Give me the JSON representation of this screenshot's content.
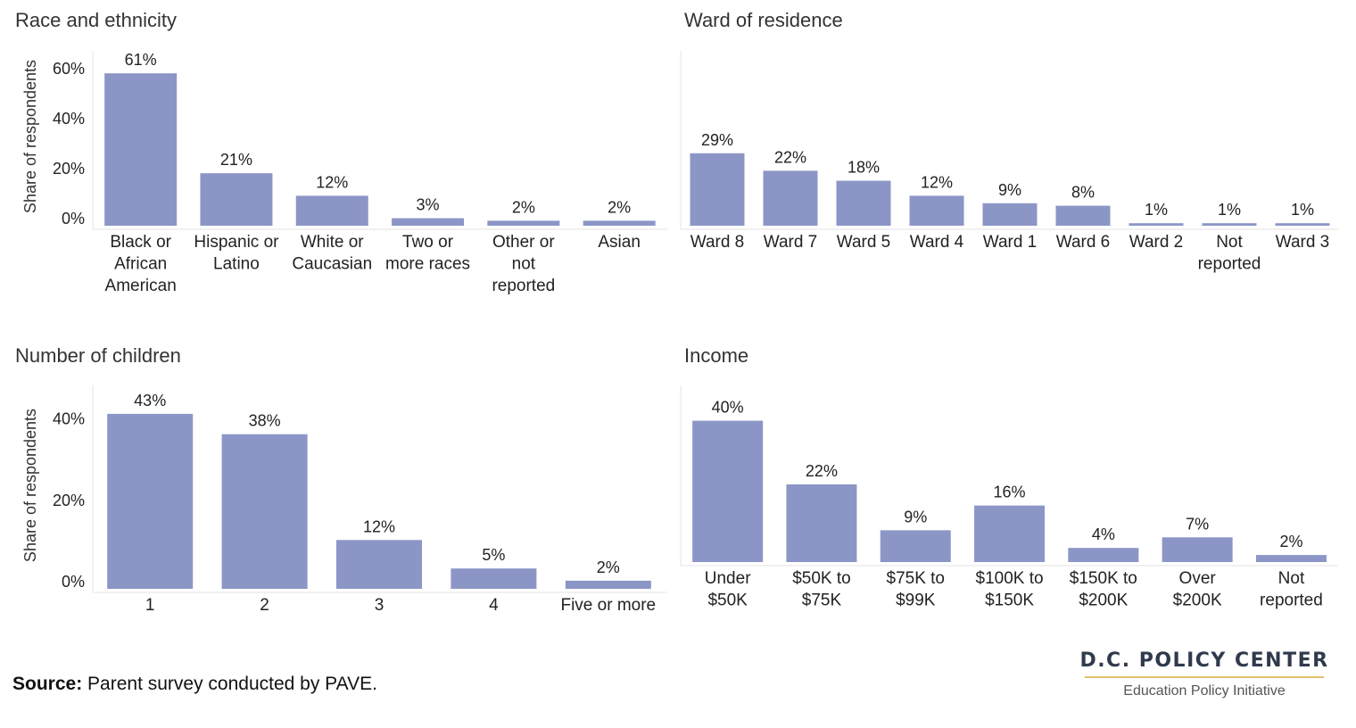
{
  "chart_data": [
    {
      "type": "bar",
      "title": "Race and ethnicity",
      "ylabel": "Share of respondents",
      "categories": [
        [
          "Black or",
          "African",
          "American"
        ],
        [
          "Hispanic or",
          "Latino"
        ],
        [
          "White or",
          "Caucasian"
        ],
        [
          "Two or",
          "more races"
        ],
        [
          "Other or",
          "not",
          "reported"
        ],
        [
          "Asian"
        ]
      ],
      "values": [
        61,
        21,
        12,
        3,
        2,
        2
      ],
      "data_labels": [
        "61%",
        "21%",
        "12%",
        "3%",
        "2%",
        "2%"
      ],
      "yticks": [
        0,
        20,
        40,
        60
      ],
      "ytick_labels": [
        "0%",
        "20%",
        "40%",
        "60%"
      ],
      "ylim": [
        0,
        70
      ]
    },
    {
      "type": "bar",
      "title": "Ward of residence",
      "ylabel": "",
      "categories": [
        [
          "Ward 8"
        ],
        [
          "Ward 7"
        ],
        [
          "Ward 5"
        ],
        [
          "Ward 4"
        ],
        [
          "Ward 1"
        ],
        [
          "Ward 6"
        ],
        [
          "Ward 2"
        ],
        [
          "Not",
          "reported"
        ],
        [
          "Ward 3"
        ]
      ],
      "values": [
        29,
        22,
        18,
        12,
        9,
        8,
        1,
        1,
        1
      ],
      "data_labels": [
        "29%",
        "22%",
        "18%",
        "12%",
        "9%",
        "8%",
        "1%",
        "1%",
        "1%"
      ],
      "yticks": [],
      "ytick_labels": [],
      "ylim": [
        0,
        70
      ]
    },
    {
      "type": "bar",
      "title": "Number of children",
      "ylabel": "Share of respondents",
      "categories": [
        [
          "1"
        ],
        [
          "2"
        ],
        [
          "3"
        ],
        [
          "4"
        ],
        [
          "Five or more"
        ]
      ],
      "values": [
        43,
        38,
        12,
        5,
        2
      ],
      "data_labels": [
        "43%",
        "38%",
        "12%",
        "5%",
        "2%"
      ],
      "yticks": [
        0,
        20,
        40
      ],
      "ytick_labels": [
        "0%",
        "20%",
        "40%"
      ],
      "ylim": [
        0,
        50
      ]
    },
    {
      "type": "bar",
      "title": "Income",
      "ylabel": "",
      "categories": [
        [
          "Under",
          "$50K"
        ],
        [
          "$50K to",
          "$75K"
        ],
        [
          "$75K to",
          "$99K"
        ],
        [
          "$100K to",
          "$150K"
        ],
        [
          "$150K to",
          "$200K"
        ],
        [
          "Over",
          "$200K"
        ],
        [
          "Not",
          "reported"
        ]
      ],
      "values": [
        40,
        22,
        9,
        16,
        4,
        7,
        2
      ],
      "data_labels": [
        "40%",
        "22%",
        "9%",
        "16%",
        "4%",
        "7%",
        "2%"
      ],
      "yticks": [],
      "ytick_labels": [],
      "ylim": [
        0,
        50
      ]
    }
  ],
  "colors": {
    "bar": "#8c96c6",
    "text": "#222222",
    "axis": "#e3e3e3",
    "logo_rule": "#e2c26a",
    "logo_text": "#2f3a4c"
  },
  "footer": {
    "source_label": "Source:",
    "source_text": "Parent survey conducted by PAVE.",
    "logo_title": "D.C. POLICY CENTER",
    "logo_subtitle": "Education Policy Initiative"
  }
}
